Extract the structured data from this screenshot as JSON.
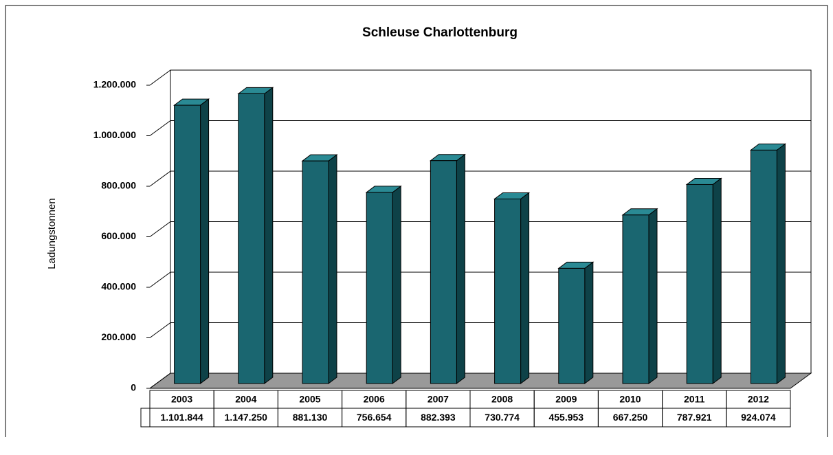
{
  "chart_data": {
    "type": "bar3d",
    "title": "Schleuse Charlottenburg",
    "y_label": "Ladungstonnen",
    "categories": [
      "2003",
      "2004",
      "2005",
      "2006",
      "2007",
      "2008",
      "2009",
      "2010",
      "2011",
      "2012"
    ],
    "values": [
      1101844,
      1147250,
      881130,
      756654,
      882393,
      730774,
      455953,
      667250,
      787921,
      924074
    ],
    "value_labels": [
      "1.101.844",
      "1.147.250",
      "881.130",
      "756.654",
      "882.393",
      "730.774",
      "455.953",
      "667.250",
      "787.921",
      "924.074"
    ],
    "color": "#1a6670",
    "ylim": [
      0,
      1200000
    ],
    "yticks": [
      0,
      {
        "value": 200000,
        "label": "200.000"
      },
      {
        "value": 400000,
        "label": "400.000"
      },
      {
        "value": 600000,
        "label": "600.000"
      },
      {
        "value": 800000,
        "label": "800.000"
      },
      {
        "value": 1000000,
        "label": "1.000.000"
      },
      {
        "value": 1200000,
        "label": "1.200.000"
      }
    ],
    "grid": true
  }
}
